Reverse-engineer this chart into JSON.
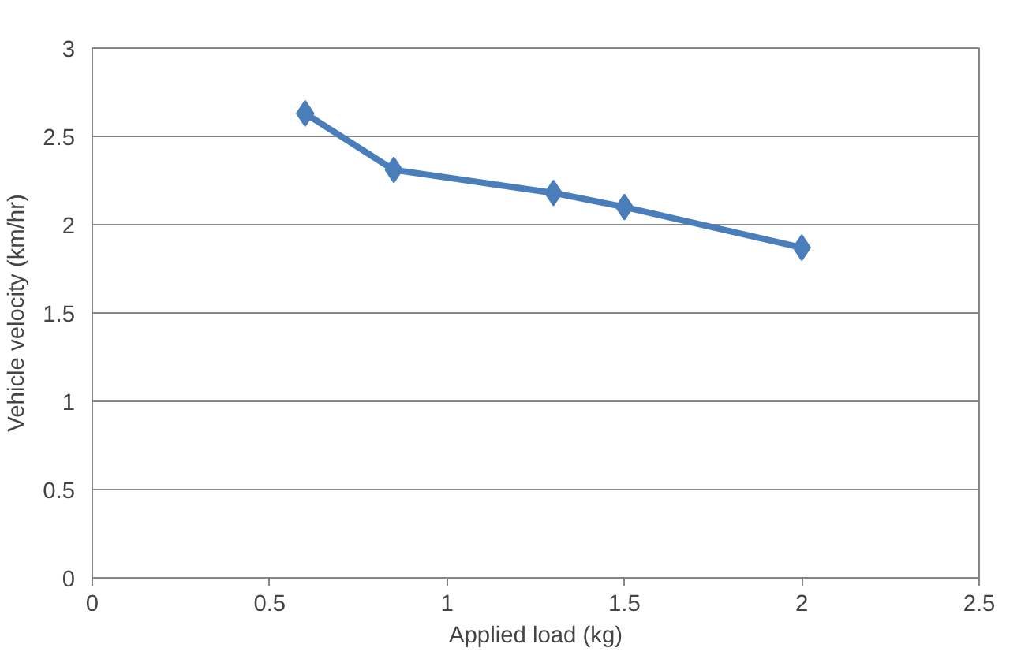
{
  "chart_data": {
    "type": "line",
    "xlabel": "Applied load (kg)",
    "ylabel": "Vehicle velocity (km/hr)",
    "x": [
      0.6,
      0.85,
      1.3,
      1.5,
      2
    ],
    "series": [
      {
        "color": "#4a7ebb",
        "values": [
          2.63,
          2.31,
          2.18,
          2.1,
          1.87
        ]
      }
    ],
    "xlim": [
      0,
      2.5
    ],
    "xticks": [
      0,
      0.5,
      1,
      1.5,
      2,
      2.5
    ],
    "ylim": [
      0,
      3
    ],
    "yticks": [
      0,
      0.5,
      1,
      1.5,
      2,
      2.5,
      3
    ],
    "grid": "y",
    "marker": "diamond",
    "line_style": "solid"
  }
}
